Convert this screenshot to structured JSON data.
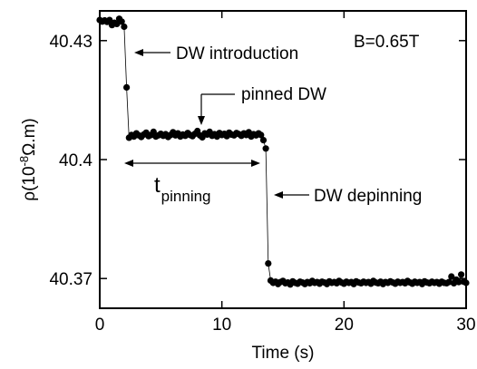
{
  "chart_data": {
    "type": "scatter",
    "xlabel": "Time (s)",
    "ylabel": {
      "prefix": "ρ(10",
      "sup": "-8",
      "suffix": "Ω.m)"
    },
    "xlim": [
      0,
      30
    ],
    "ylim": [
      40.3625,
      40.4375
    ],
    "x_ticks": [
      0,
      10,
      20,
      30
    ],
    "x_tick_labels": [
      "0",
      "10",
      "20",
      "30"
    ],
    "y_ticks": [
      40.37,
      40.4,
      40.43
    ],
    "y_tick_labels": [
      "40.37",
      "40.4",
      "40.43"
    ],
    "grid": false,
    "series": [
      {
        "x": [
          0.0,
          0.2,
          0.4,
          0.6,
          0.8,
          1.0,
          1.2,
          1.4,
          1.6,
          1.8,
          2.0,
          2.2,
          2.4,
          2.6,
          2.8,
          3.0,
          3.2,
          3.4,
          3.6,
          3.8,
          4.0,
          4.2,
          4.4,
          4.6,
          4.8,
          5.0,
          5.2,
          5.4,
          5.6,
          5.8,
          6.0,
          6.2,
          6.4,
          6.6,
          6.8,
          7.0,
          7.2,
          7.4,
          7.6,
          7.8,
          8.0,
          8.2,
          8.4,
          8.6,
          8.8,
          9.0,
          9.2,
          9.4,
          9.6,
          9.8,
          10.0,
          10.2,
          10.4,
          10.6,
          10.8,
          11.0,
          11.2,
          11.4,
          11.6,
          11.8,
          12.0,
          12.2,
          12.4,
          12.6,
          12.8,
          13.0,
          13.2,
          13.4,
          13.6,
          13.8,
          14.0,
          14.2,
          14.4,
          14.6,
          14.8,
          15.0,
          15.2,
          15.4,
          15.6,
          15.8,
          16.0,
          16.2,
          16.4,
          16.6,
          16.8,
          17.0,
          17.2,
          17.4,
          17.6,
          17.8,
          18.0,
          18.2,
          18.4,
          18.6,
          18.8,
          19.0,
          19.2,
          19.4,
          19.6,
          19.8,
          20.0,
          20.2,
          20.4,
          20.6,
          20.8,
          21.0,
          21.2,
          21.4,
          21.6,
          21.8,
          22.0,
          22.2,
          22.4,
          22.6,
          22.8,
          23.0,
          23.2,
          23.4,
          23.6,
          23.8,
          24.0,
          24.2,
          24.4,
          24.6,
          24.8,
          25.0,
          25.2,
          25.4,
          25.6,
          25.8,
          26.0,
          26.2,
          26.4,
          26.6,
          26.8,
          27.0,
          27.2,
          27.4,
          27.6,
          27.8,
          28.0,
          28.2,
          28.4,
          28.6,
          28.8,
          29.0,
          29.2,
          29.4,
          29.6,
          29.8,
          30.0
        ],
        "y": [
          40.4352,
          40.4348,
          40.4351,
          40.4347,
          40.4352,
          40.4339,
          40.4345,
          40.4342,
          40.4355,
          40.4348,
          40.4335,
          40.4182,
          40.4055,
          40.4062,
          40.4058,
          40.4066,
          40.4061,
          40.4057,
          40.4063,
          40.4068,
          40.4059,
          40.4062,
          40.407,
          40.4058,
          40.4061,
          40.4065,
          40.406,
          40.4064,
          40.4057,
          40.4062,
          40.4069,
          40.4061,
          40.4066,
          40.4058,
          40.4063,
          40.406,
          40.4067,
          40.4062,
          40.4059,
          40.4065,
          40.4072,
          40.4061,
          40.4056,
          40.4066,
          40.4063,
          40.407,
          40.406,
          40.4064,
          40.4058,
          40.4067,
          40.4062,
          40.4065,
          40.4059,
          40.4068,
          40.4063,
          40.4061,
          40.4067,
          40.4064,
          40.406,
          40.4066,
          40.4062,
          40.4069,
          40.4058,
          40.4064,
          40.4061,
          40.4066,
          40.4062,
          40.4049,
          40.4028,
          40.3738,
          40.3695,
          40.3689,
          40.3692,
          40.3686,
          40.3691,
          40.3694,
          40.3688,
          40.369,
          40.3685,
          40.3693,
          40.3689,
          40.3687,
          40.3692,
          40.369,
          40.3686,
          40.3691,
          40.3688,
          40.3694,
          40.3689,
          40.3691,
          40.3687,
          40.3692,
          40.369,
          40.3686,
          40.3693,
          40.3689,
          40.3691,
          40.3688,
          40.3694,
          40.369,
          40.3687,
          40.3692,
          40.3689,
          40.3691,
          40.3686,
          40.3693,
          40.369,
          40.3688,
          40.3692,
          40.3689,
          40.3691,
          40.3687,
          40.3694,
          40.369,
          40.3688,
          40.3692,
          40.3686,
          40.3691,
          40.3689,
          40.3693,
          40.369,
          40.3687,
          40.3692,
          40.3689,
          40.3691,
          40.3688,
          40.3694,
          40.369,
          40.3687,
          40.3692,
          40.3689,
          40.3691,
          40.3686,
          40.3693,
          40.369,
          40.3688,
          40.3692,
          40.3689,
          40.3691,
          40.3687,
          40.3692,
          40.3689,
          40.3688,
          40.3691,
          40.3705,
          40.3688,
          40.3697,
          40.3691,
          40.371,
          40.3692,
          40.3689
        ]
      }
    ],
    "annotations": {
      "field": "B=0.65T",
      "dw_introduction": "DW introduction",
      "pinned_dw": "pinned DW",
      "dw_depinning": "DW depinning",
      "t_main": "t",
      "t_sub": "pinning"
    }
  }
}
